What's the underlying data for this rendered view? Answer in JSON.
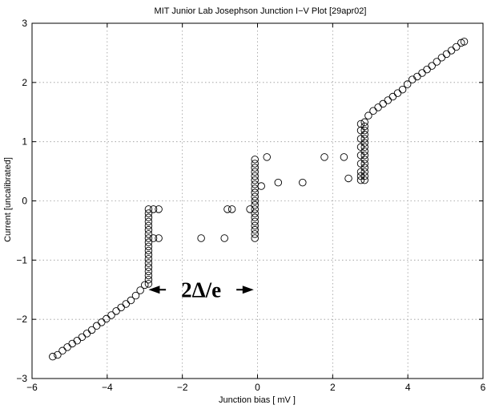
{
  "chart_data": {
    "type": "scatter",
    "title": "MIT Junior Lab Josephson Junction I−V Plot [29apr02]",
    "xlabel": "Junction bias [ mV ]",
    "ylabel": "Current [uncalibrated]",
    "xlim": [
      -6,
      6
    ],
    "ylim": [
      -3,
      3
    ],
    "xticks": [
      -6,
      -4,
      -2,
      0,
      2,
      4,
      6
    ],
    "yticks": [
      -3,
      -2,
      -1,
      0,
      1,
      2,
      3
    ],
    "xtick_labels": [
      "−6",
      "−4",
      "−2",
      "0",
      "2",
      "4",
      "6"
    ],
    "ytick_labels": [
      "−3",
      "−2",
      "−1",
      "0",
      "1",
      "2",
      "3"
    ],
    "grid": true,
    "marker": "open-circle",
    "series": [
      {
        "points": [
          [
            -5.45,
            -2.63
          ],
          [
            -5.32,
            -2.6
          ],
          [
            -5.19,
            -2.53
          ],
          [
            -5.06,
            -2.47
          ],
          [
            -4.93,
            -2.41
          ],
          [
            -4.8,
            -2.36
          ],
          [
            -4.67,
            -2.3
          ],
          [
            -4.54,
            -2.24
          ],
          [
            -4.41,
            -2.18
          ],
          [
            -4.28,
            -2.11
          ],
          [
            -4.15,
            -2.05
          ],
          [
            -4.02,
            -1.99
          ],
          [
            -3.89,
            -1.93
          ],
          [
            -3.76,
            -1.86
          ],
          [
            -3.63,
            -1.8
          ],
          [
            -3.5,
            -1.74
          ],
          [
            -3.37,
            -1.68
          ],
          [
            -3.24,
            -1.6
          ],
          [
            -3.12,
            -1.51
          ],
          [
            -3.0,
            -1.42
          ],
          [
            -2.9,
            -1.4
          ],
          [
            -2.9,
            -1.33
          ],
          [
            -2.9,
            -1.26
          ],
          [
            -2.9,
            -1.19
          ],
          [
            -2.9,
            -1.12
          ],
          [
            -2.9,
            -1.05
          ],
          [
            -2.9,
            -0.98
          ],
          [
            -2.9,
            -0.91
          ],
          [
            -2.9,
            -0.84
          ],
          [
            -2.9,
            -0.77
          ],
          [
            -2.9,
            -0.7
          ],
          [
            -2.9,
            -0.63
          ],
          [
            -2.9,
            -0.56
          ],
          [
            -2.9,
            -0.49
          ],
          [
            -2.9,
            -0.42
          ],
          [
            -2.9,
            -0.35
          ],
          [
            -2.9,
            -0.28
          ],
          [
            -2.9,
            -0.21
          ],
          [
            -2.9,
            -0.14
          ],
          [
            -2.77,
            -0.14
          ],
          [
            -2.63,
            -0.14
          ],
          [
            -2.77,
            -0.63
          ],
          [
            -2.63,
            -0.63
          ],
          [
            -1.5,
            -0.63
          ],
          [
            -0.88,
            -0.63
          ],
          [
            -0.8,
            -0.14
          ],
          [
            -0.68,
            -0.14
          ],
          [
            -0.2,
            -0.14
          ],
          [
            -0.07,
            -0.63
          ],
          [
            -0.07,
            -0.56
          ],
          [
            -0.07,
            -0.49
          ],
          [
            -0.07,
            -0.42
          ],
          [
            -0.07,
            -0.35
          ],
          [
            -0.07,
            -0.28
          ],
          [
            -0.07,
            -0.21
          ],
          [
            -0.07,
            -0.14
          ],
          [
            -0.07,
            -0.07
          ],
          [
            -0.07,
            0.0
          ],
          [
            -0.07,
            0.07
          ],
          [
            -0.07,
            0.14
          ],
          [
            -0.07,
            0.21
          ],
          [
            -0.07,
            0.28
          ],
          [
            -0.07,
            0.35
          ],
          [
            -0.07,
            0.42
          ],
          [
            -0.07,
            0.49
          ],
          [
            -0.07,
            0.56
          ],
          [
            -0.07,
            0.63
          ],
          [
            -0.07,
            0.7
          ],
          [
            0.1,
            0.25
          ],
          [
            0.25,
            0.74
          ],
          [
            0.55,
            0.31
          ],
          [
            1.2,
            0.31
          ],
          [
            1.78,
            0.74
          ],
          [
            2.3,
            0.74
          ],
          [
            2.42,
            0.38
          ],
          [
            2.75,
            0.35
          ],
          [
            2.75,
            0.42
          ],
          [
            2.75,
            0.49
          ],
          [
            2.75,
            0.63
          ],
          [
            2.75,
            0.77
          ],
          [
            2.75,
            0.91
          ],
          [
            2.75,
            1.05
          ],
          [
            2.75,
            1.19
          ],
          [
            2.75,
            1.3
          ],
          [
            2.85,
            0.35
          ],
          [
            2.85,
            0.42
          ],
          [
            2.85,
            0.49
          ],
          [
            2.85,
            0.56
          ],
          [
            2.85,
            0.63
          ],
          [
            2.85,
            0.7
          ],
          [
            2.85,
            0.77
          ],
          [
            2.85,
            0.84
          ],
          [
            2.85,
            0.91
          ],
          [
            2.85,
            0.98
          ],
          [
            2.85,
            1.05
          ],
          [
            2.85,
            1.12
          ],
          [
            2.85,
            1.19
          ],
          [
            2.85,
            1.26
          ],
          [
            2.85,
            1.33
          ],
          [
            2.95,
            1.44
          ],
          [
            3.08,
            1.52
          ],
          [
            3.21,
            1.58
          ],
          [
            3.34,
            1.64
          ],
          [
            3.47,
            1.7
          ],
          [
            3.6,
            1.76
          ],
          [
            3.73,
            1.82
          ],
          [
            3.86,
            1.88
          ],
          [
            3.99,
            1.97
          ],
          [
            4.12,
            2.05
          ],
          [
            4.25,
            2.1
          ],
          [
            4.38,
            2.16
          ],
          [
            4.51,
            2.22
          ],
          [
            4.64,
            2.28
          ],
          [
            4.77,
            2.35
          ],
          [
            4.9,
            2.42
          ],
          [
            5.03,
            2.48
          ],
          [
            5.16,
            2.54
          ],
          [
            5.29,
            2.6
          ],
          [
            5.42,
            2.67
          ],
          [
            5.5,
            2.69
          ]
        ]
      }
    ],
    "annotation": {
      "text": "2Δ/e",
      "span_x": [
        -2.9,
        -0.1
      ],
      "y": -1.5,
      "style": "double-arrow"
    }
  }
}
